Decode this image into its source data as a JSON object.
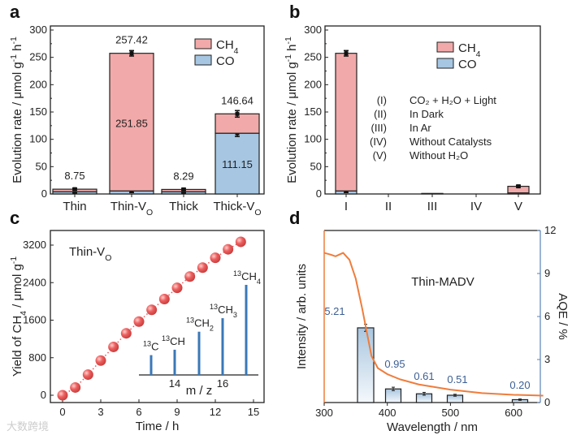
{
  "chart_data": [
    {
      "panel": "a",
      "type": "bar",
      "stacked": true,
      "categories": [
        {
          "base": "Thin",
          "sub": ""
        },
        {
          "base": "Thin-V",
          "sub": "O"
        },
        {
          "base": "Thick",
          "sub": ""
        },
        {
          "base": "Thick-V",
          "sub": "O"
        }
      ],
      "series": [
        {
          "name": "CO",
          "color": "#a6c6e2",
          "values": [
            4.0,
            5.57,
            4.0,
            111.15
          ],
          "errors": [
            2,
            3,
            2,
            6
          ]
        },
        {
          "name": "CH4",
          "color": "#f2a9a9",
          "values": [
            4.75,
            251.85,
            4.29,
            35.49
          ],
          "errors": [
            2,
            5,
            2,
            6
          ]
        }
      ],
      "total_labels": [
        "8.75",
        "257.42",
        "8.29",
        "146.64"
      ],
      "inner_labels": [
        {
          "index": 1,
          "text": "251.85"
        },
        {
          "index": 3,
          "text": "111.15"
        }
      ],
      "legend": [
        {
          "base": "CH",
          "sub": "4"
        },
        {
          "base": "CO",
          "sub": ""
        }
      ],
      "legend_position": "top-right",
      "ylabel": {
        "base": "Evolution rate / μmol g",
        "sup1": "-1",
        "mid": " h",
        "sup2": "-1"
      },
      "ylim": [
        0,
        300
      ],
      "yticks": [
        "0",
        "50",
        "100",
        "150",
        "200",
        "250",
        "300"
      ]
    },
    {
      "panel": "b",
      "type": "bar",
      "stacked": true,
      "categories": [
        "I",
        "II",
        "III",
        "IV",
        "V"
      ],
      "series": [
        {
          "name": "CO",
          "values": [
            5.57,
            0,
            0.5,
            0,
            2
          ],
          "errors": [
            3,
            0,
            0,
            0,
            0
          ]
        },
        {
          "name": "CH4",
          "values": [
            251.85,
            0,
            0.5,
            0,
            12
          ],
          "errors": [
            5,
            0,
            0,
            0,
            2
          ]
        }
      ],
      "legend": [
        {
          "base": "CH",
          "sub": "4"
        },
        {
          "base": "CO",
          "sub": ""
        }
      ],
      "legend_position": "top-right",
      "conditions": [
        {
          "num": "(I)",
          "text": "CO₂ + H₂O + Light"
        },
        {
          "num": "(II)",
          "text": "In Dark"
        },
        {
          "num": "(III)",
          "text": "In Ar"
        },
        {
          "num": "(IV)",
          "text": "Without Catalysts"
        },
        {
          "num": "(V)",
          "text": "Without H₂O"
        }
      ],
      "ylabel": {
        "base": "Evolution rate / μmol g",
        "sup1": "-1",
        "mid": " h",
        "sup2": "-1"
      },
      "ylim": [
        0,
        300
      ],
      "yticks": [
        "0",
        "50",
        "100",
        "150",
        "200",
        "250",
        "300"
      ]
    },
    {
      "panel": "c",
      "type": "scatter",
      "x": [
        0,
        1,
        2,
        3,
        4,
        5,
        6,
        7,
        8,
        9,
        10,
        11,
        12,
        13,
        14
      ],
      "y": [
        0,
        165,
        440,
        740,
        1030,
        1320,
        1570,
        1820,
        2050,
        2290,
        2530,
        2720,
        2930,
        3110,
        3270
      ],
      "color": "#e8585a",
      "annotation": {
        "base": "Thin-V",
        "sub": "O"
      },
      "xlabel": "Time / h",
      "ylabel": {
        "a": "Yield of CH",
        "sub": "4",
        "b": " / μmol g",
        "sup": "-1"
      },
      "xlim": [
        -0.8,
        15.8
      ],
      "ylim": [
        -150,
        3500
      ],
      "xticks": [
        "0",
        "3",
        "6",
        "9",
        "12",
        "15"
      ],
      "yticks": [
        "0",
        "800",
        "1600",
        "2400",
        "3200"
      ],
      "inset": {
        "type": "bar",
        "xlabel": "m / z",
        "xticks": [
          "14",
          "16"
        ],
        "peaks": [
          {
            "label": "13",
            "base": "C",
            "sub": "",
            "intensity": 0.22
          },
          {
            "label": "13",
            "base": "CH",
            "sub": "",
            "intensity": 0.28
          },
          {
            "label": "13",
            "base": "CH",
            "sub": "2",
            "intensity": 0.48
          },
          {
            "label": "13",
            "base": "CH",
            "sub": "3",
            "intensity": 0.63
          },
          {
            "label": "13",
            "base": "CH",
            "sub": "4",
            "intensity": 1.0
          }
        ]
      }
    },
    {
      "panel": "d",
      "type": "bar+line",
      "annotation": "Thin-MADV",
      "bars": {
        "x": [
          365,
          405,
          455,
          505,
          610
        ],
        "values": [
          5.21,
          0.95,
          0.61,
          0.51,
          0.2
        ],
        "labels": [
          "5.21",
          "0.95",
          "0.61",
          "0.51",
          "0.20"
        ],
        "errors": [
          0.25,
          0.12,
          0.1,
          0.07,
          0.05
        ]
      },
      "line": {
        "x": [
          300,
          310,
          318,
          330,
          340,
          350,
          360,
          368,
          375,
          385,
          400,
          420,
          450,
          500,
          550,
          600,
          647
        ],
        "y": [
          0.87,
          0.86,
          0.85,
          0.87,
          0.83,
          0.72,
          0.55,
          0.4,
          0.27,
          0.2,
          0.165,
          0.135,
          0.105,
          0.075,
          0.055,
          0.045,
          0.04
        ],
        "color": "#ef7d3c"
      },
      "xlabel": "Wavelength / nm",
      "ylabel_left": "Intensity / arb. units",
      "ylabel_right": "AQE / %",
      "xlim": [
        300,
        647
      ],
      "ylim_right": [
        0,
        12
      ],
      "xticks": [
        "300",
        "400",
        "500",
        "600"
      ],
      "yticks_right": [
        "0",
        "3",
        "6",
        "9",
        "12"
      ]
    }
  ],
  "panel_letters": [
    "a",
    "b",
    "c",
    "d"
  ],
  "watermark": "大数跨境"
}
